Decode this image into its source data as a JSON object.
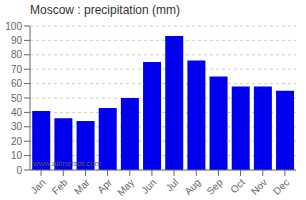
{
  "chart_data": {
    "type": "bar",
    "title": "Moscow : precipitation (mm)",
    "categories": [
      "Jan",
      "Feb",
      "Mar",
      "Apr",
      "May",
      "Jun",
      "Jul",
      "Aug",
      "Sep",
      "Oct",
      "Nov",
      "Dec"
    ],
    "values": [
      41,
      36,
      34,
      43,
      50,
      75,
      93,
      76,
      65,
      58,
      58,
      55
    ],
    "color": "#0000ee",
    "ylim": [
      0,
      100
    ],
    "yticks": [
      0,
      10,
      20,
      30,
      40,
      50,
      60,
      70,
      80,
      90,
      100
    ],
    "grid": true,
    "annotations": [
      "www.allmetsat.com"
    ]
  }
}
